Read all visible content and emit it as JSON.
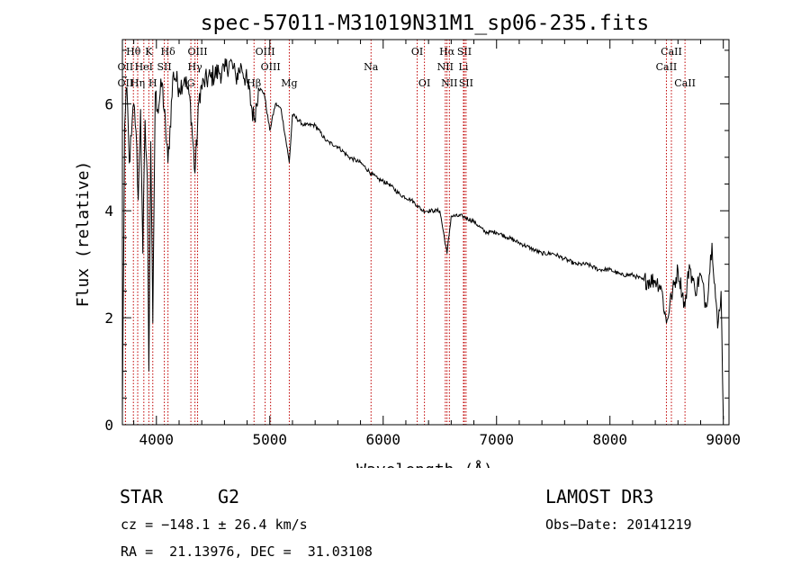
{
  "chart_data": {
    "type": "line",
    "title": "spec-57011-M31019N31M1_sp06-235.fits",
    "xlabel": "Wavelength (Å)",
    "ylabel": "Flux (relative)",
    "xlim": [
      3700,
      9050
    ],
    "ylim": [
      0,
      7.2
    ],
    "xticks": [
      4000,
      5000,
      6000,
      7000,
      8000,
      9000
    ],
    "yticks": [
      0,
      2,
      4,
      6
    ],
    "series": [
      {
        "name": "flux",
        "x": [
          3700,
          3720,
          3740,
          3760,
          3780,
          3800,
          3820,
          3840,
          3860,
          3880,
          3900,
          3920,
          3933,
          3950,
          3968,
          3990,
          4010,
          4050,
          4102,
          4150,
          4200,
          4250,
          4300,
          4340,
          4380,
          4420,
          4480,
          4550,
          4600,
          4650,
          4700,
          4750,
          4800,
          4861,
          4900,
          4950,
          5000,
          5050,
          5100,
          5172,
          5200,
          5300,
          5400,
          5500,
          5600,
          5700,
          5800,
          5893,
          5950,
          6050,
          6150,
          6250,
          6300,
          6350,
          6450,
          6500,
          6563,
          6600,
          6700,
          6800,
          6900,
          7000,
          7100,
          7200,
          7300,
          7400,
          7500,
          7600,
          7700,
          7800,
          7900,
          8000,
          8100,
          8200,
          8300,
          8400,
          8450,
          8498,
          8542,
          8600,
          8662,
          8700,
          8750,
          8800,
          8850,
          8900,
          8950,
          8980,
          9000
        ],
        "y": [
          0.2,
          5.6,
          6.3,
          4.9,
          5.4,
          6.0,
          5.5,
          4.2,
          5.9,
          3.2,
          5.7,
          4.6,
          1.0,
          5.3,
          1.9,
          6.2,
          5.9,
          6.4,
          4.9,
          6.6,
          6.3,
          6.5,
          6.0,
          4.7,
          6.2,
          6.4,
          6.5,
          6.6,
          6.6,
          6.8,
          6.5,
          6.7,
          6.4,
          5.7,
          6.3,
          6.2,
          5.5,
          6.0,
          5.9,
          4.9,
          5.8,
          5.6,
          5.6,
          5.3,
          5.2,
          5.0,
          4.9,
          4.7,
          4.6,
          4.5,
          4.3,
          4.2,
          4.1,
          4.0,
          4.0,
          4.0,
          3.2,
          3.9,
          3.9,
          3.8,
          3.6,
          3.6,
          3.5,
          3.4,
          3.3,
          3.2,
          3.2,
          3.1,
          3.0,
          3.0,
          2.9,
          2.9,
          2.8,
          2.8,
          2.7,
          2.7,
          2.6,
          1.9,
          2.4,
          2.9,
          2.2,
          3.0,
          2.5,
          2.8,
          2.2,
          3.4,
          1.8,
          2.5,
          0.1
        ]
      }
    ],
    "lines": [
      {
        "label": "Hθ",
        "x": 3797,
        "row": 1
      },
      {
        "label": "K",
        "x": 3933,
        "row": 1
      },
      {
        "label": "Hδ",
        "x": 4102,
        "row": 1
      },
      {
        "label": "OIII",
        "x": 4363,
        "row": 1
      },
      {
        "label": "OIII",
        "x": 4959,
        "row": 1
      },
      {
        "label": "OI",
        "x": 6300,
        "row": 1
      },
      {
        "label": "Hα",
        "x": 6563,
        "row": 1
      },
      {
        "label": "SII",
        "x": 6716,
        "row": 1
      },
      {
        "label": "CaII",
        "x": 8542,
        "row": 1
      },
      {
        "label": "OII",
        "x": 3727,
        "row": 2
      },
      {
        "label": "HeI",
        "x": 3889,
        "row": 2
      },
      {
        "label": "SII",
        "x": 4070,
        "row": 2
      },
      {
        "label": "Hγ",
        "x": 4340,
        "row": 2
      },
      {
        "label": "OIII",
        "x": 5007,
        "row": 2
      },
      {
        "label": "Na",
        "x": 5893,
        "row": 2
      },
      {
        "label": "NII",
        "x": 6548,
        "row": 2
      },
      {
        "label": "Li",
        "x": 6708,
        "row": 2
      },
      {
        "label": "CaII",
        "x": 8498,
        "row": 2
      },
      {
        "label": "OII",
        "x": 3727,
        "row": 3
      },
      {
        "label": "Hη",
        "x": 3835,
        "row": 3
      },
      {
        "label": "H",
        "x": 3968,
        "row": 3
      },
      {
        "label": "G",
        "x": 4304,
        "row": 3
      },
      {
        "label": "Hβ",
        "x": 4861,
        "row": 3
      },
      {
        "label": "Mg",
        "x": 5172,
        "row": 3
      },
      {
        "label": "OI",
        "x": 6364,
        "row": 3
      },
      {
        "label": "NII",
        "x": 6584,
        "row": 3
      },
      {
        "label": "SII",
        "x": 6731,
        "row": 3
      },
      {
        "label": "CaII",
        "x": 8662,
        "row": 3
      }
    ]
  },
  "info": {
    "object_class": "STAR",
    "subclass": "G2",
    "survey": "LAMOST DR3",
    "cz": "cz = −148.1 ± 26.4 km/s",
    "obs_date": "Obs−Date: 20141219",
    "coords": "RA =  21.13976, DEC =  31.03108"
  },
  "colors": {
    "line_marker": "#c00000",
    "spectrum": "#000000",
    "axes": "#000000"
  }
}
